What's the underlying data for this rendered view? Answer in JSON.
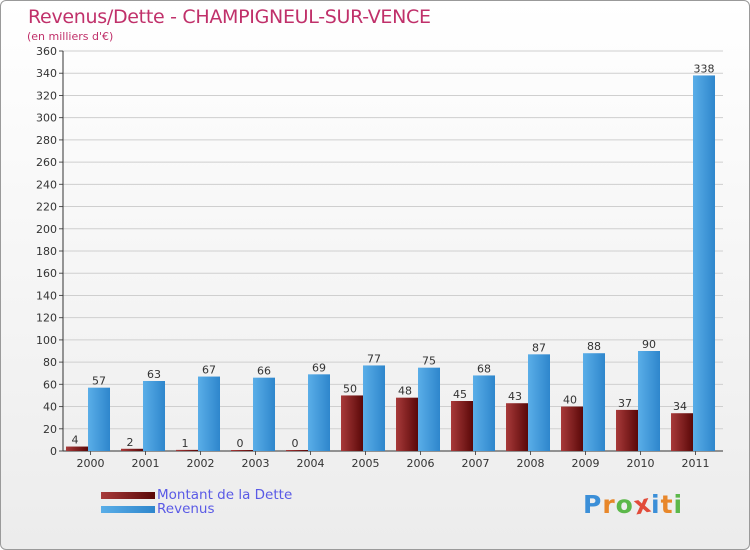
{
  "header": {
    "title": "Revenus/Dette - CHAMPIGNEUL-SUR-VENCE",
    "subtitle": "(en milliers d'€)"
  },
  "colors": {
    "dette": "#6b0a0a",
    "dette_light": "#a83a3a",
    "revenus": "#5aaee8",
    "revenus_dark": "#2e86cc",
    "title": "#c0306a",
    "legend_text": "#5a5ae6",
    "grid": "#cfcfcf"
  },
  "legend": {
    "dette_label": "Montant de la Dette",
    "revenus_label": "Revenus"
  },
  "logo": {
    "letters": [
      "P",
      "r",
      "o",
      "x",
      "i",
      "t",
      "i"
    ],
    "colors": [
      "#3b8fd8",
      "#e8872a",
      "#5cb84a",
      "#e24b3a",
      "#3b8fd8",
      "#e8872a",
      "#5cb84a"
    ]
  },
  "chart_data": {
    "type": "bar",
    "title": "Revenus/Dette - CHAMPIGNEUL-SUR-VENCE",
    "ylabel": "(en milliers d'€)",
    "xlabel": "",
    "categories": [
      "2000",
      "2001",
      "2002",
      "2003",
      "2004",
      "2005",
      "2006",
      "2007",
      "2008",
      "2009",
      "2010",
      "2011"
    ],
    "series": [
      {
        "name": "Montant de la Dette",
        "values": [
          4,
          2,
          1,
          0,
          0,
          50,
          48,
          45,
          43,
          40,
          37,
          34
        ]
      },
      {
        "name": "Revenus",
        "values": [
          57,
          63,
          67,
          66,
          69,
          77,
          75,
          68,
          87,
          88,
          90,
          338
        ]
      }
    ],
    "ylim": [
      0,
      360
    ],
    "ytick_step": 20,
    "grid": true,
    "legend_position": "bottom-left"
  }
}
